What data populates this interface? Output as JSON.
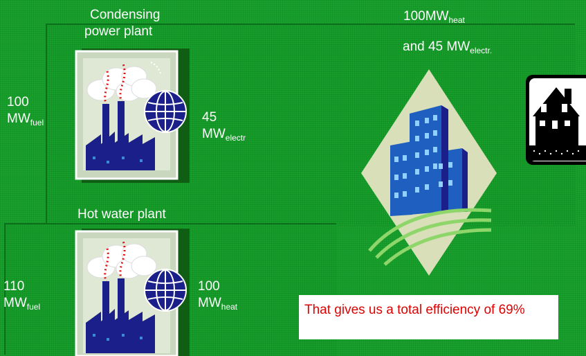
{
  "condensing_plant": {
    "title_line1": "Condensing",
    "title_line2": "power plant",
    "input_value": "100",
    "input_unit": "MW",
    "input_sub": "fuel",
    "output_value": "45",
    "output_unit": "MW",
    "output_sub": "electr"
  },
  "hot_water_plant": {
    "title": "Hot water plant",
    "input_value": "110",
    "input_unit": "MW",
    "input_sub": "fuel",
    "output_value": "100",
    "output_unit": "MW",
    "output_sub": "heat"
  },
  "combined": {
    "line1_main": "100MW",
    "line1_sub": "heat",
    "line2_main": "and 45 MW",
    "line2_sub": "electr."
  },
  "note": {
    "text": "That gives us a total efficiency of 69%"
  },
  "icons": [
    "power-plant-icon",
    "globe-icon",
    "city-buildings-icon",
    "house-icon"
  ],
  "colors": {
    "background": "#18a12c",
    "note_text": "#e00000",
    "plant_body": "#1a1f8a"
  }
}
